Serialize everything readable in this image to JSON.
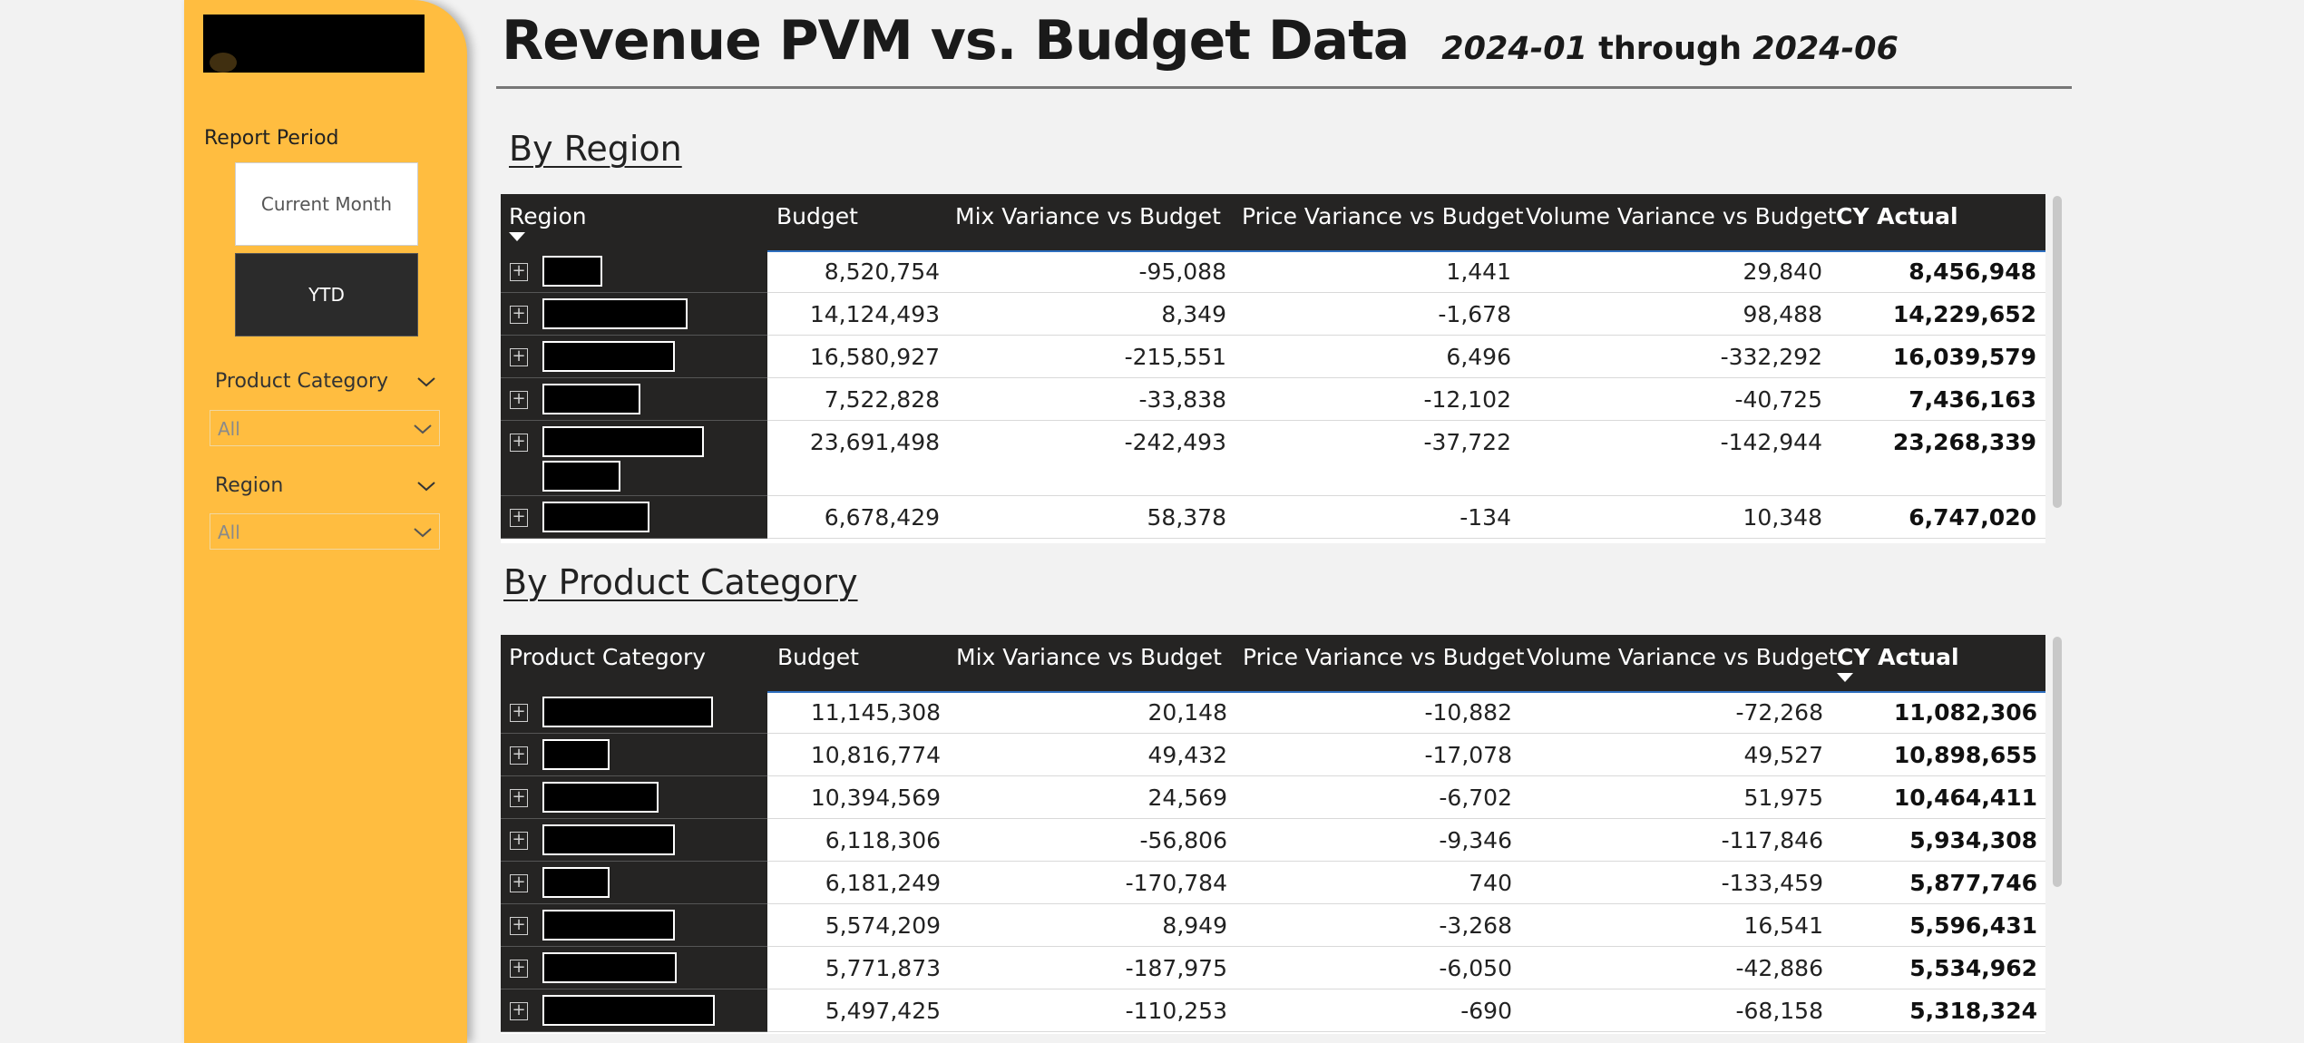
{
  "sidebar": {
    "report_period_label": "Report Period",
    "current_month_label": "Current Month",
    "ytd_label": "YTD",
    "product_category_label": "Product Category",
    "product_category_value": "All",
    "region_label": "Region",
    "region_value": "All"
  },
  "header": {
    "title": "Revenue PVM vs. Budget Data",
    "period_start": "2024-01",
    "through": "through",
    "period_end": "2024-06"
  },
  "region_section": {
    "title": "By Region",
    "columns": [
      "Region",
      "Budget",
      "Mix Variance vs Budget",
      "Price Variance vs Budget",
      "Volume Variance vs Budget",
      "CY Actual"
    ],
    "rows": [
      {
        "budget": "8,520,754",
        "mix": "-95,088",
        "price": "1,441",
        "volume": "29,840",
        "actual": "8,456,948"
      },
      {
        "budget": "14,124,493",
        "mix": "8,349",
        "price": "-1,678",
        "volume": "98,488",
        "actual": "14,229,652"
      },
      {
        "budget": "16,580,927",
        "mix": "-215,551",
        "price": "6,496",
        "volume": "-332,292",
        "actual": "16,039,579"
      },
      {
        "budget": "7,522,828",
        "mix": "-33,838",
        "price": "-12,102",
        "volume": "-40,725",
        "actual": "7,436,163"
      },
      {
        "budget": "23,691,498",
        "mix": "-242,493",
        "price": "-37,722",
        "volume": "-142,944",
        "actual": "23,268,339"
      },
      {
        "budget": "6,678,429",
        "mix": "58,378",
        "price": "-134",
        "volume": "10,348",
        "actual": "6,747,020"
      }
    ]
  },
  "category_section": {
    "title": "By Product Category",
    "columns": [
      "Product Category",
      "Budget",
      "Mix Variance vs Budget",
      "Price Variance vs Budget",
      "Volume Variance vs Budget",
      "CY Actual"
    ],
    "rows": [
      {
        "budget": "11,145,308",
        "mix": "20,148",
        "price": "-10,882",
        "volume": "-72,268",
        "actual": "11,082,306"
      },
      {
        "budget": "10,816,774",
        "mix": "49,432",
        "price": "-17,078",
        "volume": "49,527",
        "actual": "10,898,655"
      },
      {
        "budget": "10,394,569",
        "mix": "24,569",
        "price": "-6,702",
        "volume": "51,975",
        "actual": "10,464,411"
      },
      {
        "budget": "6,118,306",
        "mix": "-56,806",
        "price": "-9,346",
        "volume": "-117,846",
        "actual": "5,934,308"
      },
      {
        "budget": "6,181,249",
        "mix": "-170,784",
        "price": "740",
        "volume": "-133,459",
        "actual": "5,877,746"
      },
      {
        "budget": "5,574,209",
        "mix": "8,949",
        "price": "-3,268",
        "volume": "16,541",
        "actual": "5,596,431"
      },
      {
        "budget": "5,771,873",
        "mix": "-187,975",
        "price": "-6,050",
        "volume": "-42,886",
        "actual": "5,534,962"
      },
      {
        "budget": "5,497,425",
        "mix": "-110,253",
        "price": "-690",
        "volume": "-68,158",
        "actual": "5,318,324"
      }
    ]
  },
  "colors": {
    "sidebar": "#ffbd40",
    "table_header": "#252423",
    "header_accent": "#2e6fbf",
    "page_background": "#f2f2f2"
  },
  "icons": {
    "expand": "plus-square-icon",
    "sort": "sort-descending-icon",
    "dropdown": "chevron-down-icon"
  }
}
